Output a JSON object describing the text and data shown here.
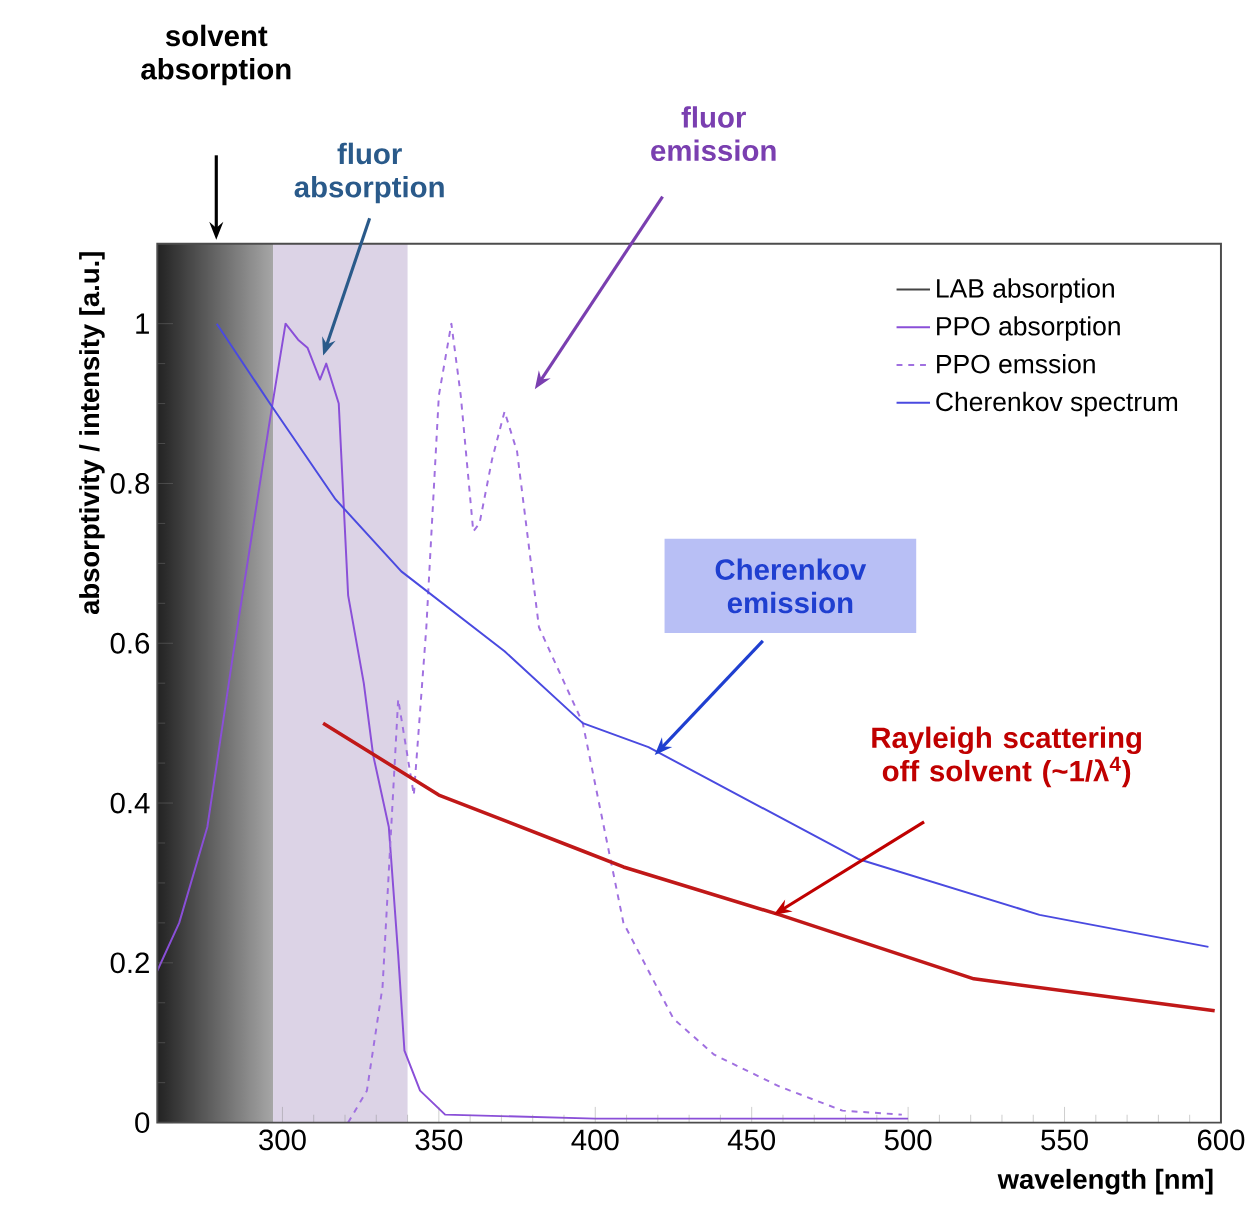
{
  "chart_data": {
    "type": "line",
    "xlabel": "wavelength [nm]",
    "ylabel": "absorptivity / intensity [a.u.]",
    "xlim": [
      260,
      600
    ],
    "ylim": [
      0,
      1.1
    ],
    "xticks": [
      300,
      350,
      400,
      450,
      500,
      550,
      600
    ],
    "yticks": [
      0,
      0.2,
      0.4,
      0.6,
      0.8,
      1
    ],
    "legend": "top right",
    "series": [
      {
        "name": "LAB absorption",
        "color": "#444444"
      },
      {
        "name": "PPO absorption",
        "color": "#8a4fd8",
        "x": [
          260,
          267,
          276,
          284,
          292,
          296,
          301,
          305,
          308,
          312,
          314,
          318,
          321,
          326,
          329,
          334,
          337,
          339,
          344,
          352,
          400,
          500
        ],
        "values": [
          0.19,
          0.25,
          0.37,
          0.58,
          0.78,
          0.88,
          1.0,
          0.98,
          0.97,
          0.93,
          0.95,
          0.9,
          0.66,
          0.55,
          0.46,
          0.37,
          0.21,
          0.09,
          0.04,
          0.01,
          0.005,
          0.005
        ]
      },
      {
        "name": "PPO emssion",
        "color": "#a070e0",
        "line_style": "dashed",
        "x": [
          321,
          327,
          332,
          337,
          342,
          346,
          350,
          354,
          357,
          361,
          363,
          367,
          371,
          375,
          382,
          396,
          409,
          425,
          438,
          459,
          479,
          498
        ],
        "values": [
          0,
          0.04,
          0.17,
          0.53,
          0.41,
          0.62,
          0.91,
          1.0,
          0.91,
          0.74,
          0.75,
          0.83,
          0.89,
          0.84,
          0.62,
          0.5,
          0.25,
          0.13,
          0.085,
          0.045,
          0.015,
          0.01
        ]
      },
      {
        "name": "Cherenkov spectrum",
        "color": "#4a4ae0",
        "x": [
          279,
          296,
          317,
          338,
          371,
          396,
          417,
          484,
          542,
          596
        ],
        "values": [
          1.0,
          0.9,
          0.78,
          0.69,
          0.59,
          0.5,
          0.47,
          0.33,
          0.26,
          0.22
        ]
      },
      {
        "color": "#c01818",
        "x": [
          313,
          350,
          396,
          409,
          459,
          521,
          598
        ],
        "values": [
          0.5,
          0.41,
          0.34,
          0.32,
          0.26,
          0.18,
          0.14
        ]
      }
    ],
    "bands": [
      {
        "axis": "x",
        "from": 260,
        "to": 297,
        "color": "#222222"
      },
      {
        "axis": "x",
        "from": 297,
        "to": 340,
        "color": "#dcd3e6"
      }
    ],
    "annotations": [
      "solvent absorption",
      {
        "text": "fluor absorption",
        "x": 313,
        "y": 0.96
      },
      "fluor emission",
      {
        "text": "Cherenkov emission",
        "x": 419,
        "y": 0.46
      },
      {
        "text": "Rayleigh scattering off solvent (~1/λ$^{4}$)",
        "x": 457,
        "y": 0.26
      }
    ]
  }
}
